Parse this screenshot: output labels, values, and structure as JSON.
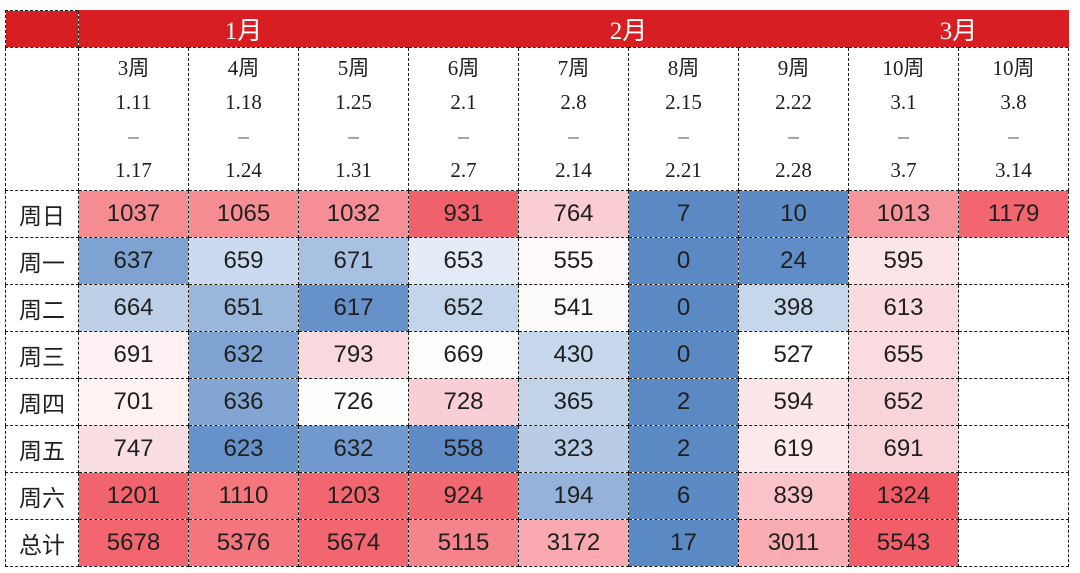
{
  "colors": {
    "month_bar": "#D71E22",
    "grid_border": "#1A1A1A",
    "value_text": "#202020",
    "month_text": "#FFFFFF",
    "strong_blue": "#5B89C4",
    "strong_red": "#F15A64"
  },
  "table": {
    "corner_label": "",
    "range_dash": "–",
    "months": [
      {
        "label": "1月",
        "span": 3
      },
      {
        "label": "2月",
        "span": 4
      },
      {
        "label": "3月",
        "span": 2
      }
    ],
    "weeks": [
      {
        "label": "3周",
        "start": "1.11",
        "end": "1.17"
      },
      {
        "label": "4周",
        "start": "1.18",
        "end": "1.24"
      },
      {
        "label": "5周",
        "start": "1.25",
        "end": "1.31"
      },
      {
        "label": "6周",
        "start": "2.1",
        "end": "2.7"
      },
      {
        "label": "7周",
        "start": "2.8",
        "end": "2.14"
      },
      {
        "label": "8周",
        "start": "2.15",
        "end": "2.21"
      },
      {
        "label": "9周",
        "start": "2.22",
        "end": "2.28"
      },
      {
        "label": "10周",
        "start": "3.1",
        "end": "3.7"
      },
      {
        "label": "10周",
        "start": "3.8",
        "end": "3.14"
      }
    ],
    "rows": [
      {
        "label": "周日",
        "cells": [
          {
            "v": "1037",
            "bg": "#F58C92"
          },
          {
            "v": "1065",
            "bg": "#F58D93"
          },
          {
            "v": "1032",
            "bg": "#F58F95"
          },
          {
            "v": "931",
            "bg": "#F0626B"
          },
          {
            "v": "764",
            "bg": "#FACDD3"
          },
          {
            "v": "7",
            "bg": "#5B89C4"
          },
          {
            "v": "10",
            "bg": "#5D8AC5"
          },
          {
            "v": "1013",
            "bg": "#F5959B"
          },
          {
            "v": "1179",
            "bg": "#F1666F"
          }
        ]
      },
      {
        "label": "周一",
        "cells": [
          {
            "v": "637",
            "bg": "#7EA2D2"
          },
          {
            "v": "659",
            "bg": "#CBDAEE"
          },
          {
            "v": "671",
            "bg": "#A8C0E1"
          },
          {
            "v": "653",
            "bg": "#E3EBF6"
          },
          {
            "v": "555",
            "bg": "#FEFAFA"
          },
          {
            "v": "0",
            "bg": "#5B89C4"
          },
          {
            "v": "24",
            "bg": "#608DC7"
          },
          {
            "v": "595",
            "bg": "#FBE5E8"
          },
          {
            "v": "",
            "bg": "#FFFFFF"
          }
        ]
      },
      {
        "label": "周二",
        "cells": [
          {
            "v": "664",
            "bg": "#BDD0E8"
          },
          {
            "v": "651",
            "bg": "#9BB6DB"
          },
          {
            "v": "617",
            "bg": "#6791C9"
          },
          {
            "v": "652",
            "bg": "#C3D5EA"
          },
          {
            "v": "541",
            "bg": "#FDFAFB"
          },
          {
            "v": "0",
            "bg": "#5B89C4"
          },
          {
            "v": "398",
            "bg": "#C6D7EB"
          },
          {
            "v": "613",
            "bg": "#F9DADF"
          },
          {
            "v": "",
            "bg": "#FFFFFF"
          }
        ]
      },
      {
        "label": "周三",
        "cells": [
          {
            "v": "691",
            "bg": "#FDF1F3"
          },
          {
            "v": "632",
            "bg": "#7EA2D2"
          },
          {
            "v": "793",
            "bg": "#FAD9DE"
          },
          {
            "v": "669",
            "bg": "#FEFDFE"
          },
          {
            "v": "430",
            "bg": "#C7D7EC"
          },
          {
            "v": "0",
            "bg": "#5B89C4"
          },
          {
            "v": "527",
            "bg": "#FFFFFF"
          },
          {
            "v": "655",
            "bg": "#F9DBE0"
          },
          {
            "v": "",
            "bg": "#FFFFFF"
          }
        ]
      },
      {
        "label": "周四",
        "cells": [
          {
            "v": "701",
            "bg": "#FEF2F3"
          },
          {
            "v": "636",
            "bg": "#82A5D3"
          },
          {
            "v": "726",
            "bg": "#FEFEFF"
          },
          {
            "v": "728",
            "bg": "#F9CED4"
          },
          {
            "v": "365",
            "bg": "#C1D3E9"
          },
          {
            "v": "2",
            "bg": "#5B89C4"
          },
          {
            "v": "594",
            "bg": "#FCE6E9"
          },
          {
            "v": "652",
            "bg": "#F9D5DA"
          },
          {
            "v": "",
            "bg": "#FFFFFF"
          }
        ]
      },
      {
        "label": "周五",
        "cells": [
          {
            "v": "747",
            "bg": "#F9DEE2"
          },
          {
            "v": "623",
            "bg": "#6791C9"
          },
          {
            "v": "632",
            "bg": "#7299CD"
          },
          {
            "v": "558",
            "bg": "#5E8BC5"
          },
          {
            "v": "323",
            "bg": "#B8CCE6"
          },
          {
            "v": "2",
            "bg": "#5B89C4"
          },
          {
            "v": "619",
            "bg": "#FBE9EC"
          },
          {
            "v": "691",
            "bg": "#F8D4D9"
          },
          {
            "v": "",
            "bg": "#FFFFFF"
          }
        ]
      },
      {
        "label": "周六",
        "cells": [
          {
            "v": "1201",
            "bg": "#F2646D"
          },
          {
            "v": "1110",
            "bg": "#F5777E"
          },
          {
            "v": "1203",
            "bg": "#F2666F"
          },
          {
            "v": "924",
            "bg": "#F26870"
          },
          {
            "v": "194",
            "bg": "#95B2DA"
          },
          {
            "v": "6",
            "bg": "#5B89C4"
          },
          {
            "v": "839",
            "bg": "#F9C3C9"
          },
          {
            "v": "1324",
            "bg": "#F15A64"
          },
          {
            "v": "",
            "bg": "#FFFFFF"
          }
        ]
      },
      {
        "label": "总计",
        "cells": [
          {
            "v": "5678",
            "bg": "#F2656E"
          },
          {
            "v": "5376",
            "bg": "#F4757D"
          },
          {
            "v": "5674",
            "bg": "#F2666F"
          },
          {
            "v": "5115",
            "bg": "#F4838B"
          },
          {
            "v": "3172",
            "bg": "#F9A9AF"
          },
          {
            "v": "17",
            "bg": "#5B89C4"
          },
          {
            "v": "3011",
            "bg": "#F9ACB2"
          },
          {
            "v": "5543",
            "bg": "#F15E68"
          },
          {
            "v": "",
            "bg": "#FFFFFF"
          }
        ]
      }
    ]
  },
  "chart_data": {
    "type": "heatmap",
    "title": "",
    "column_groups": [
      {
        "label": "1月",
        "span": 3
      },
      {
        "label": "2月",
        "span": 4
      },
      {
        "label": "3月",
        "span": 2
      }
    ],
    "columns": [
      "3周 1.11–1.17",
      "4周 1.18–1.24",
      "5周 1.25–1.31",
      "6周 2.1–2.7",
      "7周 2.8–2.14",
      "8周 2.15–2.21",
      "9周 2.22–2.28",
      "10周 3.1–3.7",
      "10周 3.8–3.14"
    ],
    "rows": [
      "周日",
      "周一",
      "周二",
      "周三",
      "周四",
      "周五",
      "周六",
      "总计"
    ],
    "values": [
      [
        1037,
        1065,
        1032,
        931,
        764,
        7,
        10,
        1013,
        1179
      ],
      [
        637,
        659,
        671,
        653,
        555,
        0,
        24,
        595,
        null
      ],
      [
        664,
        651,
        617,
        652,
        541,
        0,
        398,
        613,
        null
      ],
      [
        691,
        632,
        793,
        669,
        430,
        0,
        527,
        655,
        null
      ],
      [
        701,
        636,
        726,
        728,
        365,
        2,
        594,
        652,
        null
      ],
      [
        747,
        623,
        632,
        558,
        323,
        2,
        619,
        691,
        null
      ],
      [
        1201,
        1110,
        1203,
        924,
        194,
        6,
        839,
        1324,
        null
      ],
      [
        5678,
        5376,
        5674,
        5115,
        3172,
        17,
        3011,
        5543,
        null
      ]
    ],
    "colorscale": "diverging blue (low) → white → red (high), applied per column",
    "legend": "none",
    "grid": "dashed"
  }
}
